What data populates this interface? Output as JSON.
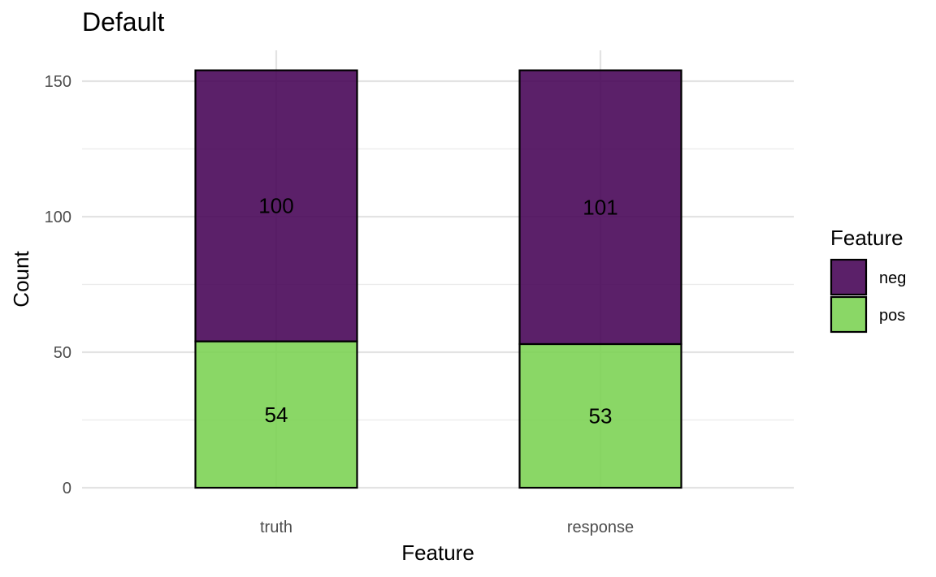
{
  "chart_data": {
    "type": "bar",
    "stacked": true,
    "title": "Default",
    "xlabel": "Feature",
    "ylabel": "Count",
    "categories": [
      "truth",
      "response"
    ],
    "ylim": [
      0,
      155
    ],
    "yticks": [
      0,
      50,
      100,
      150
    ],
    "grid": true,
    "legend": {
      "title": "Feature",
      "position": "right",
      "entries": [
        "neg",
        "pos"
      ]
    },
    "series": [
      {
        "name": "pos",
        "values": [
          54,
          53
        ],
        "labels": [
          "54",
          "53"
        ],
        "color": "#7AD151"
      },
      {
        "name": "neg",
        "values": [
          100,
          101
        ],
        "labels": [
          "100",
          "101"
        ],
        "color": "#440154"
      }
    ]
  }
}
